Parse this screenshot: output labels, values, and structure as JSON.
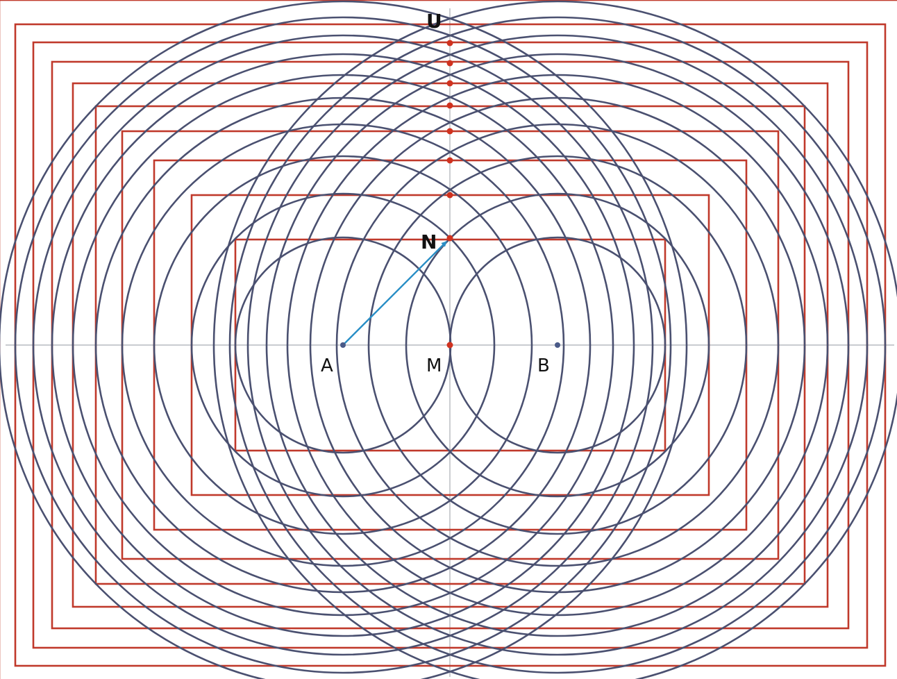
{
  "labels": {
    "point_a": "A",
    "point_m": "M",
    "point_b": "B",
    "point_n": "N",
    "point_u": "U"
  },
  "colors": {
    "circle_stroke": "#4a5070",
    "rectangle_stroke": "#c0392b",
    "intersection_dot": "#d0321f",
    "focus_dot": "#4a5a88",
    "vector_arrow": "#2a8fc6",
    "axis": "#a9adb3"
  },
  "figure": {
    "circle_family_count": 10,
    "rectangle_family_count": 10,
    "vector": "A to N"
  }
}
